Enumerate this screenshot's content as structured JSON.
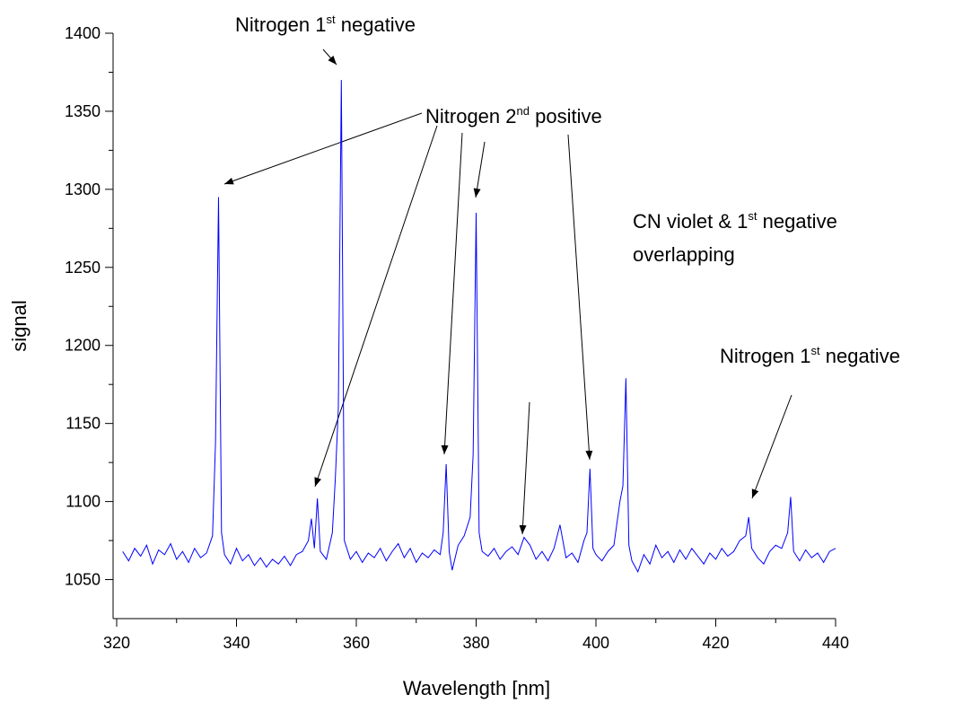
{
  "chart_data": {
    "type": "line",
    "xlabel": "Wavelength [nm]",
    "ylabel": "signal",
    "xlim": [
      319.4,
      440
    ],
    "ylim": [
      1025,
      1400
    ],
    "xticks": [
      320,
      340,
      360,
      380,
      400,
      420,
      440
    ],
    "yticks": [
      1050,
      1100,
      1150,
      1200,
      1250,
      1300,
      1350,
      1400
    ],
    "xminorticks": [
      330,
      350,
      370,
      390,
      410,
      430
    ],
    "yminorticks": [
      1075,
      1125,
      1175,
      1225,
      1275,
      1325,
      1375
    ],
    "annotations": [
      {
        "text": "Nitrogen 1",
        "sup": "st",
        "after": " negative"
      },
      {
        "text": "Nitrogen 2",
        "sup": "nd",
        "after": " positive"
      },
      {
        "text": "CN violet & 1",
        "sup": "st",
        "after": " negative",
        "line2": "overlapping"
      },
      {
        "text": "Nitrogen 1",
        "sup": "st",
        "after": " negative"
      }
    ],
    "x": [
      321,
      322,
      323,
      324,
      325,
      326,
      327,
      328,
      329,
      330,
      331,
      332,
      333,
      334,
      335,
      336,
      336.5,
      337,
      337.5,
      338,
      339,
      340,
      341,
      342,
      343,
      344,
      345,
      346,
      347,
      348,
      349,
      350,
      351,
      352,
      352.5,
      353,
      353.5,
      354,
      355,
      356,
      356.5,
      357,
      357.5,
      358,
      359,
      360,
      361,
      362,
      363,
      364,
      365,
      366,
      367,
      368,
      369,
      370,
      371,
      372,
      373,
      374,
      374.5,
      375,
      375.5,
      376,
      377,
      378,
      379,
      379.5,
      380,
      380.5,
      381,
      382,
      383,
      384,
      385,
      386,
      387,
      388,
      389,
      390,
      391,
      392,
      393,
      394,
      395,
      396,
      397,
      398,
      398.5,
      399,
      399.5,
      400,
      401,
      402,
      403,
      404,
      404.5,
      405,
      405.5,
      406,
      407,
      408,
      409,
      410,
      411,
      412,
      413,
      414,
      415,
      416,
      417,
      418,
      419,
      420,
      421,
      422,
      423,
      424,
      425,
      425.5,
      426,
      427,
      428,
      429,
      430,
      431,
      432,
      432.5,
      433,
      434,
      435,
      436,
      437,
      438,
      439,
      440
    ],
    "series": [
      {
        "color": "#0000ff",
        "values": [
          1068,
          1062,
          1070,
          1065,
          1072,
          1060,
          1069,
          1066,
          1073,
          1063,
          1068,
          1061,
          1070,
          1064,
          1067,
          1078,
          1138,
          1295,
          1080,
          1066,
          1060,
          1070,
          1062,
          1066,
          1059,
          1064,
          1058,
          1063,
          1060,
          1065,
          1059,
          1066,
          1068,
          1075,
          1089,
          1070,
          1102,
          1068,
          1063,
          1080,
          1115,
          1160,
          1370,
          1075,
          1063,
          1068,
          1061,
          1067,
          1064,
          1070,
          1062,
          1068,
          1073,
          1064,
          1070,
          1061,
          1067,
          1064,
          1069,
          1066,
          1080,
          1124,
          1068,
          1056,
          1072,
          1078,
          1090,
          1130,
          1285,
          1080,
          1068,
          1065,
          1070,
          1063,
          1068,
          1071,
          1066,
          1077,
          1072,
          1063,
          1068,
          1062,
          1070,
          1085,
          1064,
          1067,
          1061,
          1075,
          1080,
          1121,
          1070,
          1066,
          1062,
          1068,
          1072,
          1100,
          1110,
          1179,
          1072,
          1062,
          1055,
          1066,
          1060,
          1072,
          1064,
          1068,
          1061,
          1069,
          1063,
          1070,
          1065,
          1060,
          1067,
          1063,
          1070,
          1065,
          1068,
          1075,
          1078,
          1090,
          1070,
          1064,
          1060,
          1068,
          1072,
          1070,
          1080,
          1103,
          1068,
          1062,
          1069,
          1064,
          1067,
          1061,
          1068,
          1070
        ]
      }
    ]
  }
}
